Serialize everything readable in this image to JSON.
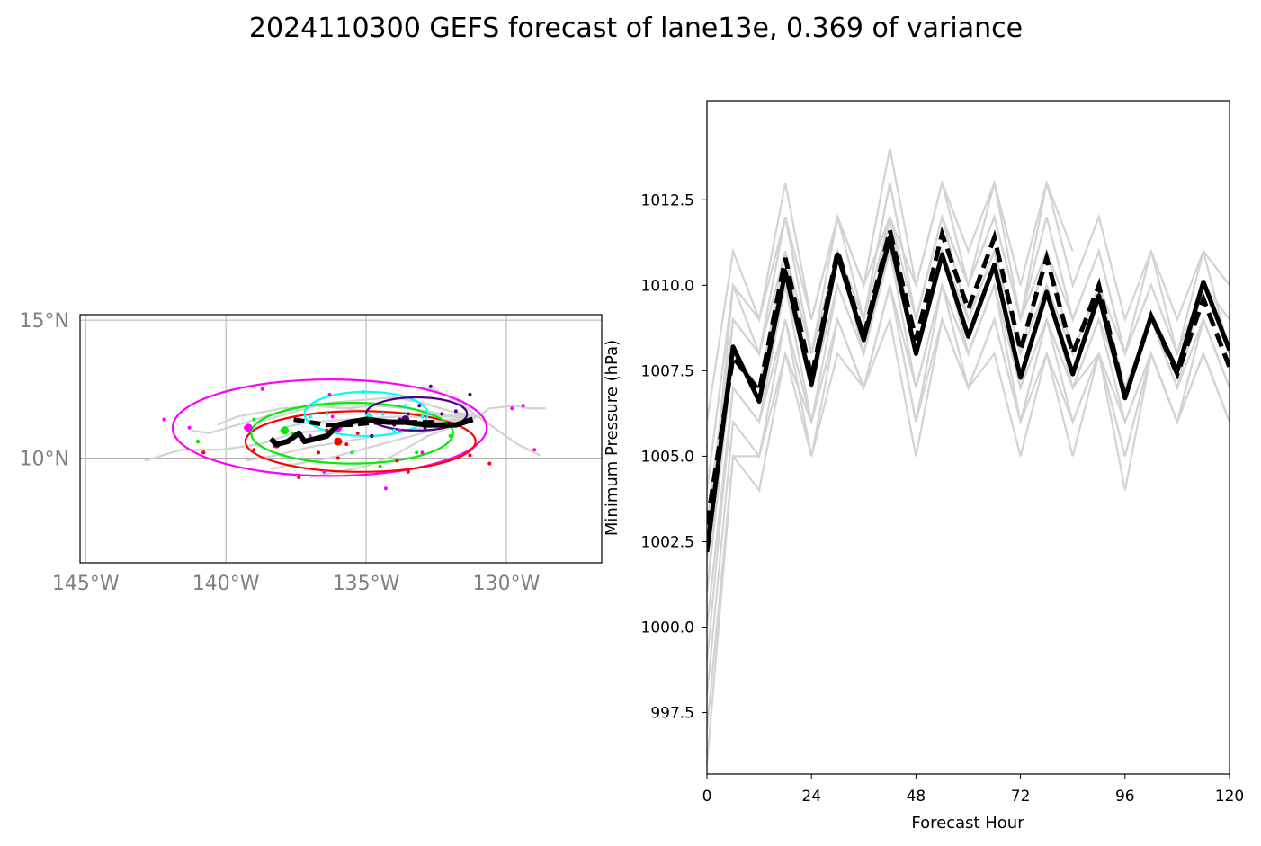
{
  "title": "2024110300 GEFS forecast of lane13e, 0.369 of variance",
  "chart_data": [
    {
      "type": "map",
      "lon_range": [
        -145.2,
        -126.6
      ],
      "lat_range": [
        6.2,
        15.2
      ],
      "x_ticks": [
        {
          "value": -145,
          "label": "145°W"
        },
        {
          "value": -140,
          "label": "140°W"
        },
        {
          "value": -135,
          "label": "135°W"
        },
        {
          "value": -130,
          "label": "130°W"
        }
      ],
      "y_ticks": [
        {
          "value": 15,
          "label": "15°N"
        },
        {
          "value": 10,
          "label": "10°N"
        }
      ],
      "grid": true,
      "colors": {
        "members": "#d3d3d3",
        "mean": "#000000"
      },
      "ensemble_tracks": [
        [
          [
            -131,
            11.5
          ],
          [
            -132,
            11.4
          ],
          [
            -133.2,
            11.3
          ],
          [
            -134.4,
            11.4
          ],
          [
            -135.5,
            11.2
          ],
          [
            -136.6,
            11.0
          ],
          [
            -137.6,
            10.9
          ],
          [
            -138.8,
            10.5
          ],
          [
            -140.2,
            10.3
          ],
          [
            -141.6,
            10.3
          ],
          [
            -142.9,
            9.9
          ]
        ],
        [
          [
            -131,
            11.5
          ],
          [
            -132.3,
            11.6
          ],
          [
            -133.5,
            11.8
          ],
          [
            -134.7,
            11.9
          ],
          [
            -135.8,
            11.8
          ],
          [
            -137.0,
            11.9
          ],
          [
            -138.3,
            11.6
          ],
          [
            -139.6,
            11.2
          ],
          [
            -140.6,
            10.9
          ],
          [
            -141.2,
            11.0
          ]
        ],
        [
          [
            -131,
            11.5
          ],
          [
            -132.2,
            11.3
          ],
          [
            -133.4,
            11.0
          ],
          [
            -134.6,
            10.8
          ],
          [
            -135.8,
            10.6
          ],
          [
            -137.0,
            10.4
          ],
          [
            -138.2,
            10.1
          ],
          [
            -139.3,
            9.9
          ]
        ],
        [
          [
            -131,
            11.5
          ],
          [
            -132.0,
            11.7
          ],
          [
            -133.0,
            12.0
          ],
          [
            -134.0,
            12.2
          ],
          [
            -135.2,
            12.1
          ],
          [
            -136.3,
            12.0
          ],
          [
            -137.5,
            11.7
          ],
          [
            -138.5,
            11.4
          ]
        ],
        [
          [
            -131,
            11.5
          ],
          [
            -132.0,
            11.2
          ],
          [
            -133.0,
            10.9
          ],
          [
            -134.1,
            10.6
          ],
          [
            -135.2,
            10.3
          ],
          [
            -136.3,
            10.0
          ],
          [
            -137.4,
            9.8
          ],
          [
            -138.4,
            9.6
          ]
        ],
        [
          [
            -131,
            11.5
          ],
          [
            -130.6,
            11.8
          ],
          [
            -129.7,
            11.9
          ],
          [
            -129.2,
            11.8
          ],
          [
            -128.6,
            11.8
          ]
        ],
        [
          [
            -131,
            11.5
          ],
          [
            -130.3,
            11.0
          ],
          [
            -129.6,
            10.5
          ],
          [
            -128.8,
            10.1
          ]
        ],
        [
          [
            -131,
            11.5
          ],
          [
            -132.5,
            11.5
          ],
          [
            -134.0,
            11.5
          ],
          [
            -135.5,
            11.4
          ],
          [
            -137.0,
            11.3
          ],
          [
            -138.0,
            11.1
          ]
        ],
        [
          [
            -131,
            11.5
          ],
          [
            -131.8,
            12.1
          ],
          [
            -132.6,
            12.5
          ],
          [
            -133.5,
            12.6
          ]
        ],
        [
          [
            -131,
            11.5
          ],
          [
            -132.8,
            10.8
          ],
          [
            -134.0,
            10.1
          ],
          [
            -135.0,
            9.7
          ],
          [
            -136.0,
            9.5
          ],
          [
            -137.0,
            9.3
          ]
        ],
        [
          [
            -131,
            11.5
          ],
          [
            -133.0,
            11.6
          ],
          [
            -135.0,
            11.7
          ],
          [
            -136.5,
            11.9
          ],
          [
            -138.0,
            11.8
          ],
          [
            -139.6,
            11.5
          ],
          [
            -140.3,
            11.2
          ]
        ]
      ],
      "mean_track_solid": [
        [
          -131.2,
          11.4
        ],
        [
          -131.8,
          11.2
        ],
        [
          -132.8,
          11.2
        ],
        [
          -133.6,
          11.3
        ],
        [
          -134.2,
          11.3
        ],
        [
          -135.0,
          11.4
        ],
        [
          -135.6,
          11.3
        ],
        [
          -136.0,
          11.2
        ],
        [
          -136.4,
          10.8
        ],
        [
          -137.2,
          10.6
        ],
        [
          -137.4,
          10.9
        ],
        [
          -137.8,
          10.6
        ],
        [
          -138.2,
          10.5
        ],
        [
          -138.4,
          10.7
        ]
      ],
      "mean_track_dashed": [
        [
          -132.6,
          11.3
        ],
        [
          -133.6,
          11.3
        ],
        [
          -134.6,
          11.3
        ],
        [
          -135.6,
          11.2
        ],
        [
          -136.4,
          11.2
        ],
        [
          -137.6,
          11.4
        ]
      ],
      "ellipses": [
        {
          "color": "#ff00ff",
          "cx": -136.3,
          "cy": 11.1,
          "rx": 5.6,
          "ry": 1.75
        },
        {
          "color": "#ff0000",
          "cx": -135.2,
          "cy": 10.6,
          "rx": 4.1,
          "ry": 1.1
        },
        {
          "color": "#00ee00",
          "cx": -135.5,
          "cy": 10.9,
          "rx": 3.6,
          "ry": 1.1
        },
        {
          "color": "#00ffff",
          "cx": -135.0,
          "cy": 11.6,
          "rx": 2.2,
          "ry": 0.8
        },
        {
          "color": "#4b0082",
          "cx": -133.2,
          "cy": 11.6,
          "rx": 1.8,
          "ry": 0.6
        }
      ],
      "points": [
        {
          "color": "#ff00ff",
          "pts": [
            [
              -142.2,
              11.4
            ],
            [
              -141.3,
              11.1
            ],
            [
              -139.3,
              11.1
            ],
            [
              -138.7,
              12.5
            ],
            [
              -136.3,
              12.3
            ],
            [
              -136.2,
              11.5
            ],
            [
              -134.8,
              11.4
            ],
            [
              -134.3,
              8.9
            ],
            [
              -133.0,
              10.2
            ],
            [
              -132.5,
              11.2
            ],
            [
              -129.8,
              11.8
            ],
            [
              -129.4,
              11.9
            ],
            [
              -129.0,
              10.3
            ],
            [
              -137.0,
              10.8
            ],
            [
              -136.5,
              9.5
            ],
            [
              -133.8,
              11.0
            ]
          ]
        },
        {
          "color": "#ff0000",
          "pts": [
            [
              -140.8,
              10.2
            ],
            [
              -139.0,
              10.3
            ],
            [
              -138.2,
              10.5
            ],
            [
              -137.4,
              9.3
            ],
            [
              -136.7,
              10.2
            ],
            [
              -136.0,
              10.0
            ],
            [
              -135.7,
              10.5
            ],
            [
              -135.3,
              10.9
            ],
            [
              -133.9,
              9.9
            ],
            [
              -133.5,
              9.5
            ],
            [
              -131.3,
              10.1
            ],
            [
              -130.6,
              9.8
            ],
            [
              -136.4,
              11.0
            ]
          ]
        },
        {
          "color": "#00ee00",
          "pts": [
            [
              -141.0,
              10.6
            ],
            [
              -139.0,
              11.4
            ],
            [
              -138.0,
              11.0
            ],
            [
              -137.0,
              11.5
            ],
            [
              -136.5,
              10.8
            ],
            [
              -136.0,
              11.1
            ],
            [
              -135.5,
              10.2
            ],
            [
              -134.5,
              9.7
            ],
            [
              -133.2,
              10.2
            ],
            [
              -132.0,
              10.8
            ],
            [
              -137.6,
              10.9
            ]
          ]
        },
        {
          "color": "#00ffff",
          "pts": [
            [
              -137.0,
              11.5
            ],
            [
              -136.4,
              11.6
            ],
            [
              -135.8,
              11.3
            ],
            [
              -135.1,
              12.4
            ],
            [
              -134.4,
              11.6
            ],
            [
              -133.6,
              11.9
            ],
            [
              -133.0,
              11.5
            ],
            [
              -134.0,
              11.0
            ]
          ]
        },
        {
          "color": "#4b0082",
          "pts": [
            [
              -134.8,
              10.8
            ],
            [
              -134.0,
              11.2
            ],
            [
              -133.5,
              11.6
            ],
            [
              -133.1,
              11.9
            ],
            [
              -132.7,
              12.6
            ],
            [
              -132.3,
              11.6
            ],
            [
              -131.8,
              11.7
            ],
            [
              -131.3,
              12.3
            ],
            [
              -132.9,
              11.1
            ],
            [
              -133.8,
              11.4
            ]
          ]
        }
      ]
    },
    {
      "type": "line",
      "xlabel": "Forecast Hour",
      "ylabel": "Minimum Pressure (hPa)",
      "xlim": [
        0,
        120
      ],
      "ylim": [
        995.7,
        1015.4
      ],
      "x_ticks": [
        0,
        24,
        48,
        72,
        96,
        120
      ],
      "y_ticks": [
        997.5,
        1000.0,
        1002.5,
        1005.0,
        1007.5,
        1010.0,
        1012.5
      ],
      "x": [
        0,
        6,
        12,
        18,
        24,
        30,
        36,
        42,
        48,
        54,
        60,
        66,
        72,
        78,
        84,
        90,
        96,
        102,
        108,
        114,
        120
      ],
      "colors": {
        "members": "#d3d3d3",
        "mean": "#000000"
      },
      "member_series": [
        [
          1006,
          1011,
          1009,
          1013,
          1009,
          1012,
          1010,
          1014,
          1010,
          1013,
          1011,
          1013,
          1010,
          1013,
          1010,
          1012,
          1009,
          1011,
          1009,
          1011,
          1010
        ],
        [
          1004,
          1010,
          1008,
          1012,
          1008,
          1011,
          1009,
          1013,
          1009,
          1012,
          1010,
          1012,
          1009,
          1011,
          1009,
          1011,
          1008,
          1010,
          1008,
          1010,
          1009
        ],
        [
          1003,
          1009,
          1008,
          1011,
          1008,
          1011,
          1009,
          1012,
          1009,
          1012,
          1009,
          1011,
          1008,
          1011,
          1008,
          1010,
          1008,
          1010,
          1008,
          1010,
          1008
        ],
        [
          1002,
          1008,
          1007,
          1011,
          1007,
          1011,
          1008,
          1012,
          1008,
          1011,
          1009,
          1011,
          1008,
          1010,
          1008,
          1010,
          1007,
          1009,
          1007,
          1010,
          1008
        ],
        [
          1001,
          1008,
          1007,
          1010,
          1007,
          1010,
          1008,
          1011,
          1008,
          1011,
          1008,
          1010,
          1007,
          1010,
          1007,
          1009,
          1007,
          1009,
          1007,
          1009,
          1007
        ],
        [
          1000,
          1007,
          1006,
          1010,
          1006,
          1010,
          1008,
          1011,
          1007,
          1010,
          1008,
          1010,
          1007,
          1009,
          1007,
          1009,
          1006,
          1008,
          1006,
          1009,
          1007
        ],
        [
          999,
          1007,
          1006,
          1009,
          1006,
          1009,
          1007,
          1010,
          1007,
          1010,
          1007,
          1009,
          1006,
          1009,
          1006,
          1008,
          1006,
          1008,
          1006,
          1008,
          1006
        ],
        [
          998,
          1006,
          1005,
          1009,
          1005,
          1009,
          1007,
          1010,
          1006,
          1009,
          1007,
          1009,
          1006,
          1008,
          1006,
          1008,
          1005,
          1008,
          1006,
          1008,
          1006
        ],
        [
          997,
          1005,
          1005,
          1008,
          1005,
          1008,
          1007,
          1009,
          1005,
          1009,
          1007,
          1008,
          1005,
          1008,
          1005,
          1008,
          1004,
          1008,
          1006,
          1008,
          1006
        ],
        [
          996,
          1005,
          1004,
          1008,
          1006,
          1009,
          1007,
          1010,
          1006,
          1010,
          1008,
          1010,
          1006,
          1009,
          1007,
          1008,
          1005,
          1008,
          1006,
          1009,
          1007
        ],
        [
          1001,
          1009,
          1008,
          1012,
          1008,
          1012,
          1009,
          1013,
          1009,
          1012,
          1010,
          1012,
          1009,
          1012,
          1009,
          1011,
          1008,
          1011,
          1008,
          1011,
          1008
        ],
        [
          1002,
          1010,
          1009,
          1012,
          1009,
          1012,
          1010,
          1012,
          1010,
          1013,
          1010,
          1013,
          1009,
          1013,
          1011,
          null,
          null,
          null,
          null,
          null,
          null
        ]
      ],
      "mean_solid": [
        1002.2,
        1008.2,
        1006.6,
        1010.4,
        1007.1,
        1010.9,
        1008.4,
        1011.4,
        1008.0,
        1010.9,
        1008.5,
        1010.6,
        1007.3,
        1009.8,
        1007.4,
        1009.7,
        1006.7,
        1009.1,
        1007.5,
        1010.1,
        1008.1
      ],
      "mean_dashed": [
        1003.0,
        1007.9,
        1006.9,
        1010.8,
        1007.3,
        1011.0,
        1008.5,
        1011.6,
        1008.4,
        1011.5,
        1009.3,
        1011.4,
        1008.1,
        1010.8,
        1008.0,
        1010.0,
        1006.7,
        1009.1,
        1007.4,
        1009.6,
        1007.6
      ]
    }
  ]
}
